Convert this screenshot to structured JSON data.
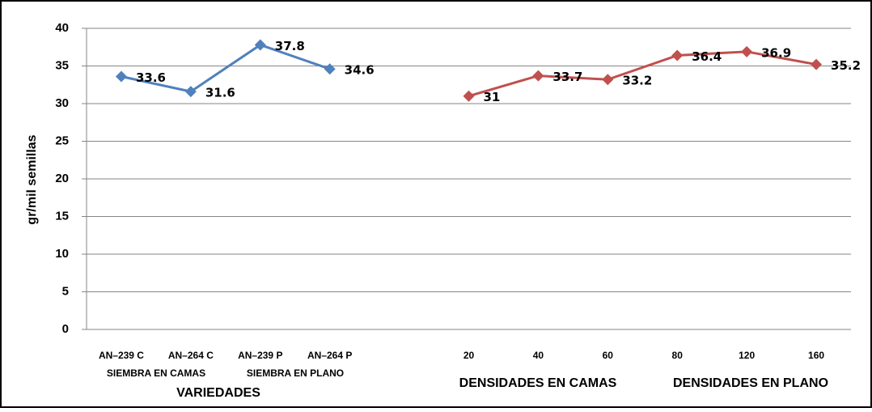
{
  "chart_data": {
    "type": "line",
    "ylabel": "gr/mil semillas",
    "categories": [
      "AN–239 C",
      "AN–264 C",
      "AN–239 P",
      "AN–264 P",
      null,
      "20",
      "40",
      "60",
      "80",
      "120",
      "160"
    ],
    "series": [
      {
        "color": "#4f81bd",
        "values": [
          33.6,
          31.6,
          37.8,
          34.6,
          null,
          null,
          null,
          null,
          null,
          null,
          null
        ]
      },
      {
        "color": "#c0504d",
        "values": [
          null,
          null,
          null,
          null,
          null,
          31,
          33.7,
          33.2,
          36.4,
          36.9,
          35.2
        ]
      }
    ],
    "group_labels": [
      "SIEMBRA EN CAMAS",
      "SIEMBRA EN PLANO",
      "VARIEDADES",
      "DENSIDADES EN CAMAS",
      "DENSIDADES EN PLANO"
    ],
    "ylim": [
      0,
      40
    ],
    "yticks": [
      0,
      5,
      10,
      15,
      20,
      25,
      30,
      35,
      40
    ],
    "grid": true
  }
}
